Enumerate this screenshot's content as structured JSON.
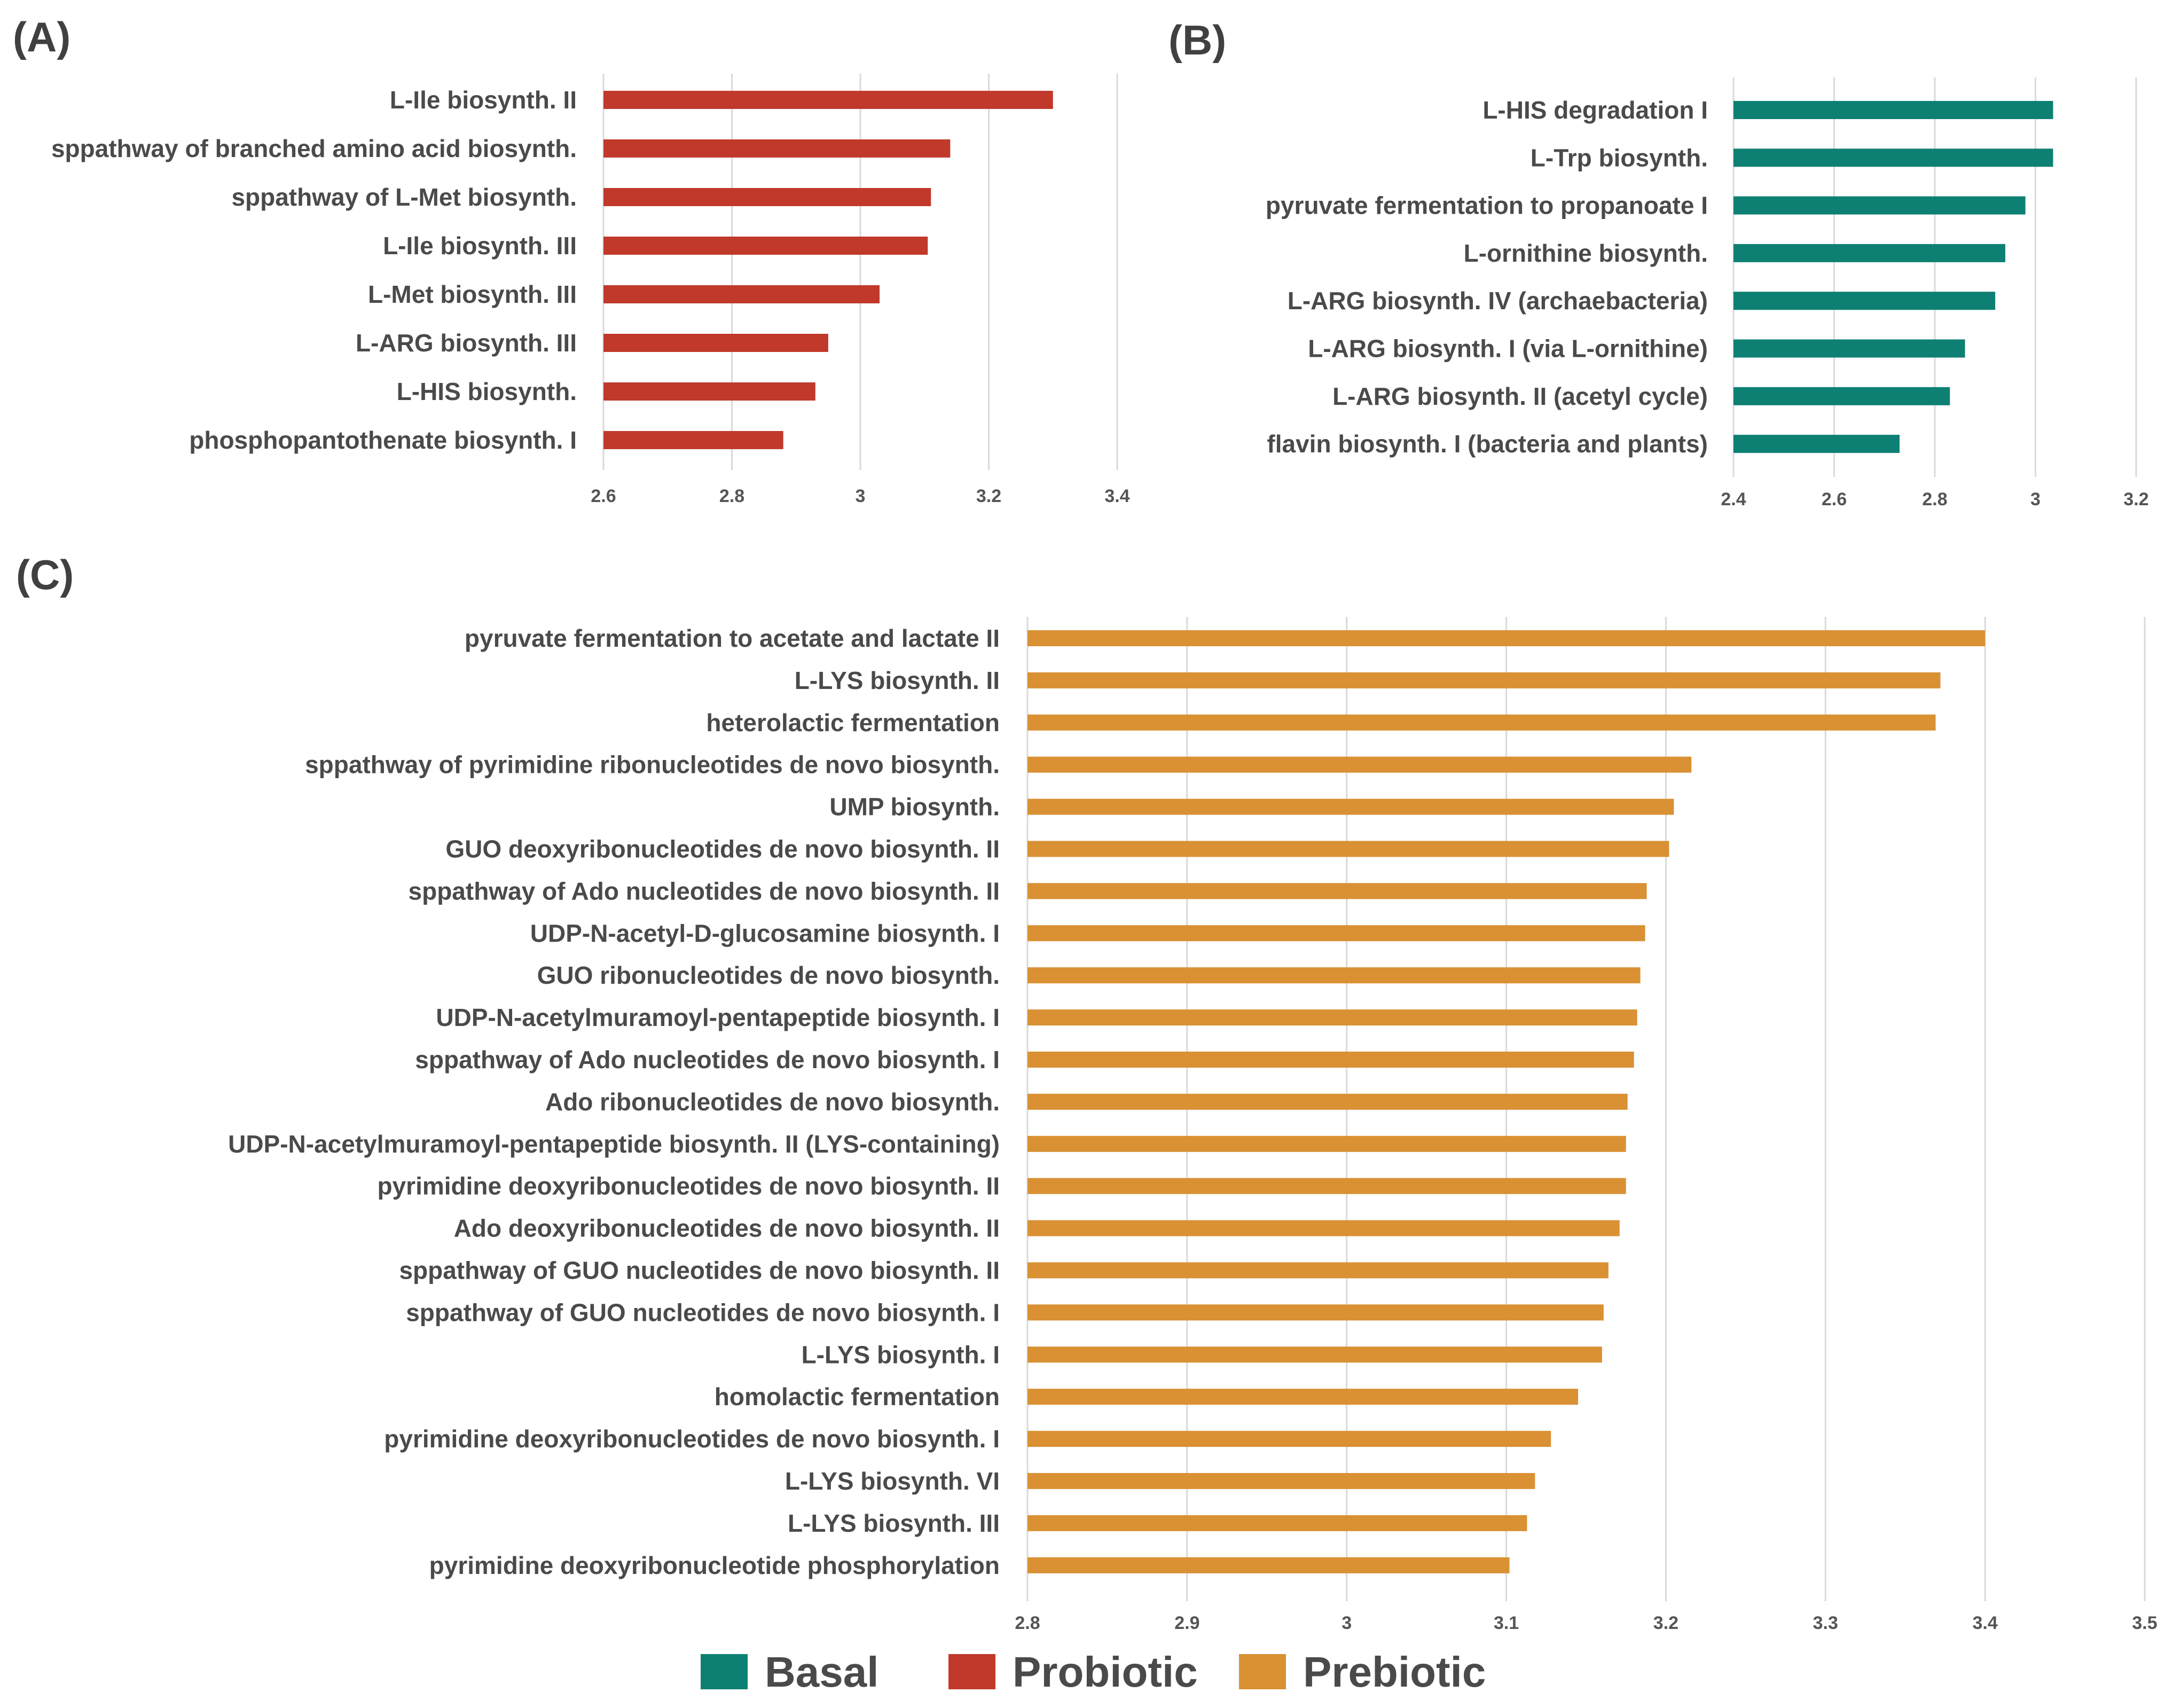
{
  "chart_data": [
    {
      "panel": "(A)",
      "type": "bar",
      "orientation": "horizontal",
      "series_name": "Probiotic",
      "color": "#c0392b",
      "categories": [
        "L-Ile biosynth. II",
        "sppathway of branched amino acid biosynth.",
        "sppathway of L-Met biosynth.",
        "L-Ile biosynth. III",
        "L-Met biosynth. III",
        "L-ARG biosynth. III",
        "L-HIS biosynth.",
        "phosphopantothenate biosynth. I"
      ],
      "values": [
        3.3,
        3.14,
        3.11,
        3.105,
        3.03,
        2.95,
        2.93,
        2.88
      ],
      "xlim": [
        2.6,
        3.4
      ],
      "xticks": [
        "2.6",
        "2.8",
        "3",
        "3.2",
        "3.4"
      ],
      "grid": true
    },
    {
      "panel": "(B)",
      "type": "bar",
      "orientation": "horizontal",
      "series_name": "Basal",
      "color": "#0e8073",
      "categories": [
        "L-HIS degradation I",
        "L-Trp biosynth.",
        "pyruvate fermentation to propanoate I",
        "L-ornithine biosynth.",
        "L-ARG biosynth. IV (archaebacteria)",
        "L-ARG biosynth. I (via L-ornithine)",
        "L-ARG biosynth. II (acetyl cycle)",
        "flavin biosynth. I (bacteria and plants)"
      ],
      "values": [
        3.035,
        3.035,
        2.98,
        2.94,
        2.92,
        2.86,
        2.83,
        2.73
      ],
      "xlim": [
        2.4,
        3.2
      ],
      "xticks": [
        "2.4",
        "2.6",
        "2.8",
        "3",
        "3.2"
      ],
      "grid": true
    },
    {
      "panel": "(C)",
      "type": "bar",
      "orientation": "horizontal",
      "series_name": "Prebiotic",
      "color": "#d99134",
      "categories": [
        "pyruvate fermentation to acetate and lactate II",
        "L-LYS biosynth. II",
        "heterolactic fermentation",
        "sppathway of pyrimidine ribonucleotides de novo biosynth.",
        "UMP biosynth.",
        "GUO deoxyribonucleotides de novo biosynth. II",
        "sppathway of Ado nucleotides de novo biosynth. II",
        "UDP-N-acetyl-D-glucosamine biosynth. I",
        "GUO ribonucleotides de novo biosynth.",
        "UDP-N-acetylmuramoyl-pentapeptide biosynth. I",
        "sppathway of Ado nucleotides de novo biosynth. I",
        "Ado ribonucleotides de novo biosynth.",
        "UDP-N-acetylmuramoyl-pentapeptide biosynth. II (LYS-containing)",
        "pyrimidine deoxyribonucleotides de novo biosynth. II",
        "Ado deoxyribonucleotides de novo biosynth. II",
        "sppathway of GUO nucleotides de novo biosynth. II",
        "sppathway of GUO nucleotides de novo biosynth. I",
        "L-LYS biosynth. I",
        "homolactic fermentation",
        "pyrimidine deoxyribonucleotides de novo biosynth. I",
        "L-LYS biosynth. VI",
        "L-LYS biosynth. III",
        "pyrimidine deoxyribonucleotide phosphorylation"
      ],
      "values": [
        3.4,
        3.372,
        3.369,
        3.216,
        3.205,
        3.202,
        3.188,
        3.187,
        3.184,
        3.182,
        3.18,
        3.176,
        3.175,
        3.175,
        3.171,
        3.164,
        3.161,
        3.16,
        3.145,
        3.128,
        3.118,
        3.113,
        3.102
      ],
      "xlim": [
        2.8,
        3.5
      ],
      "xticks": [
        "2.8",
        "2.9",
        "3",
        "3.1",
        "3.2",
        "3.3",
        "3.4",
        "3.5"
      ],
      "grid": true
    }
  ],
  "legend": {
    "placement": "bottom-center",
    "items": [
      {
        "label": "Basal",
        "color": "#0e8073"
      },
      {
        "label": "Probiotic",
        "color": "#c0392b"
      },
      {
        "label": "Prebiotic",
        "color": "#d99134"
      }
    ]
  }
}
